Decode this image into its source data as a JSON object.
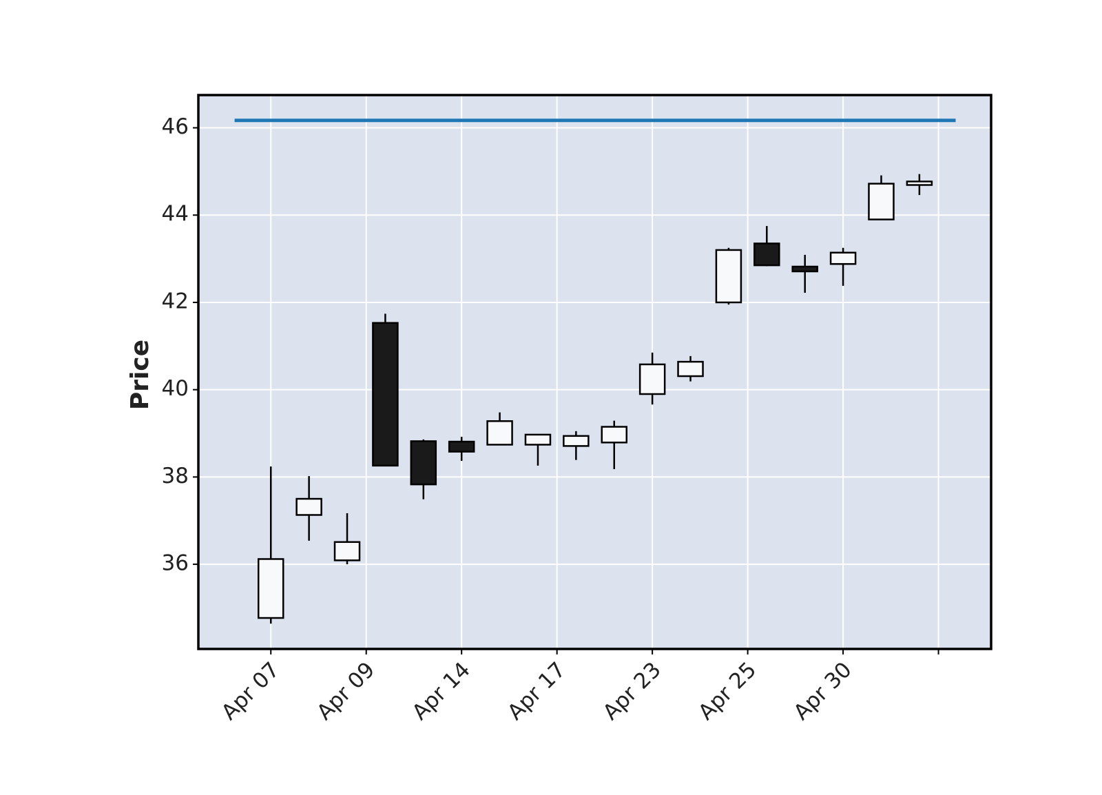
{
  "chart_data": {
    "type": "candlestick",
    "ylabel": "Price",
    "open": [
      34.77,
      37.13,
      36.09,
      41.53,
      38.82,
      38.81,
      38.74,
      38.74,
      38.71,
      38.79,
      39.9,
      40.31,
      42.0,
      43.35,
      42.82,
      42.88,
      43.9,
      44.69
    ],
    "high": [
      38.24,
      38.02,
      37.17,
      41.74,
      38.86,
      38.92,
      39.48,
      38.97,
      39.05,
      39.29,
      40.85,
      40.77,
      43.25,
      43.75,
      43.09,
      43.25,
      44.91,
      44.94
    ],
    "low": [
      34.64,
      36.54,
      36.0,
      38.26,
      37.49,
      38.37,
      38.74,
      38.26,
      38.39,
      38.18,
      39.66,
      40.19,
      41.95,
      42.83,
      42.22,
      42.38,
      43.9,
      44.46
    ],
    "close": [
      36.12,
      37.5,
      36.51,
      38.26,
      37.83,
      38.58,
      39.28,
      38.97,
      38.94,
      39.15,
      40.58,
      40.64,
      43.2,
      42.85,
      42.71,
      43.14,
      44.72,
      44.77
    ],
    "up_color": "#f8f9fb",
    "down_color": "#1a1a1a",
    "edge_color": "#000000",
    "background": "#dce2ee",
    "grid": true,
    "xlim": [
      -1.9,
      18.88
    ],
    "ylim": [
      34.06,
      46.75
    ],
    "xticks": [
      {
        "value": 0,
        "label": "Apr 07"
      },
      {
        "value": 2.5,
        "label": "Apr 09"
      },
      {
        "value": 5,
        "label": "Apr 14"
      },
      {
        "value": 7.5,
        "label": "Apr 17"
      },
      {
        "value": 10,
        "label": "Apr 23"
      },
      {
        "value": 12.5,
        "label": "Apr 25"
      },
      {
        "value": 15,
        "label": "Apr 30"
      },
      {
        "value": 17.5,
        "label": null
      }
    ],
    "yticks": [
      36,
      38,
      40,
      42,
      44,
      46
    ],
    "hline": {
      "value": 46.17,
      "xmin": -0.95,
      "xmax": 17.95,
      "color": "#1f77b4"
    }
  }
}
